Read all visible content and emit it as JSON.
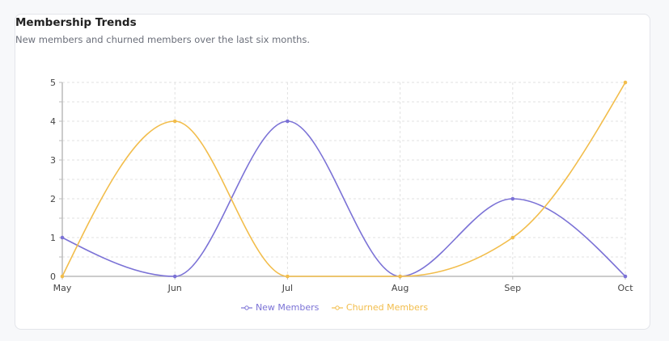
{
  "card": {
    "title": "Membership Trends",
    "subtitle": "New members and churned members over the last six months."
  },
  "chart_data": {
    "type": "line",
    "categories": [
      "May",
      "Jun",
      "Jul",
      "Aug",
      "Sep",
      "Oct"
    ],
    "series": [
      {
        "name": "New Members",
        "values": [
          1,
          0,
          4,
          0,
          2,
          0
        ],
        "color": "#7b72d6"
      },
      {
        "name": "Churned Members",
        "values": [
          0,
          4,
          0,
          0,
          1,
          5
        ],
        "color": "#f2bd4b"
      }
    ],
    "ylim": [
      0,
      5
    ],
    "yticks": [
      0,
      1,
      2,
      3,
      4,
      5
    ],
    "grid": true,
    "interpolation": "monotone",
    "legend_position": "bottom"
  }
}
